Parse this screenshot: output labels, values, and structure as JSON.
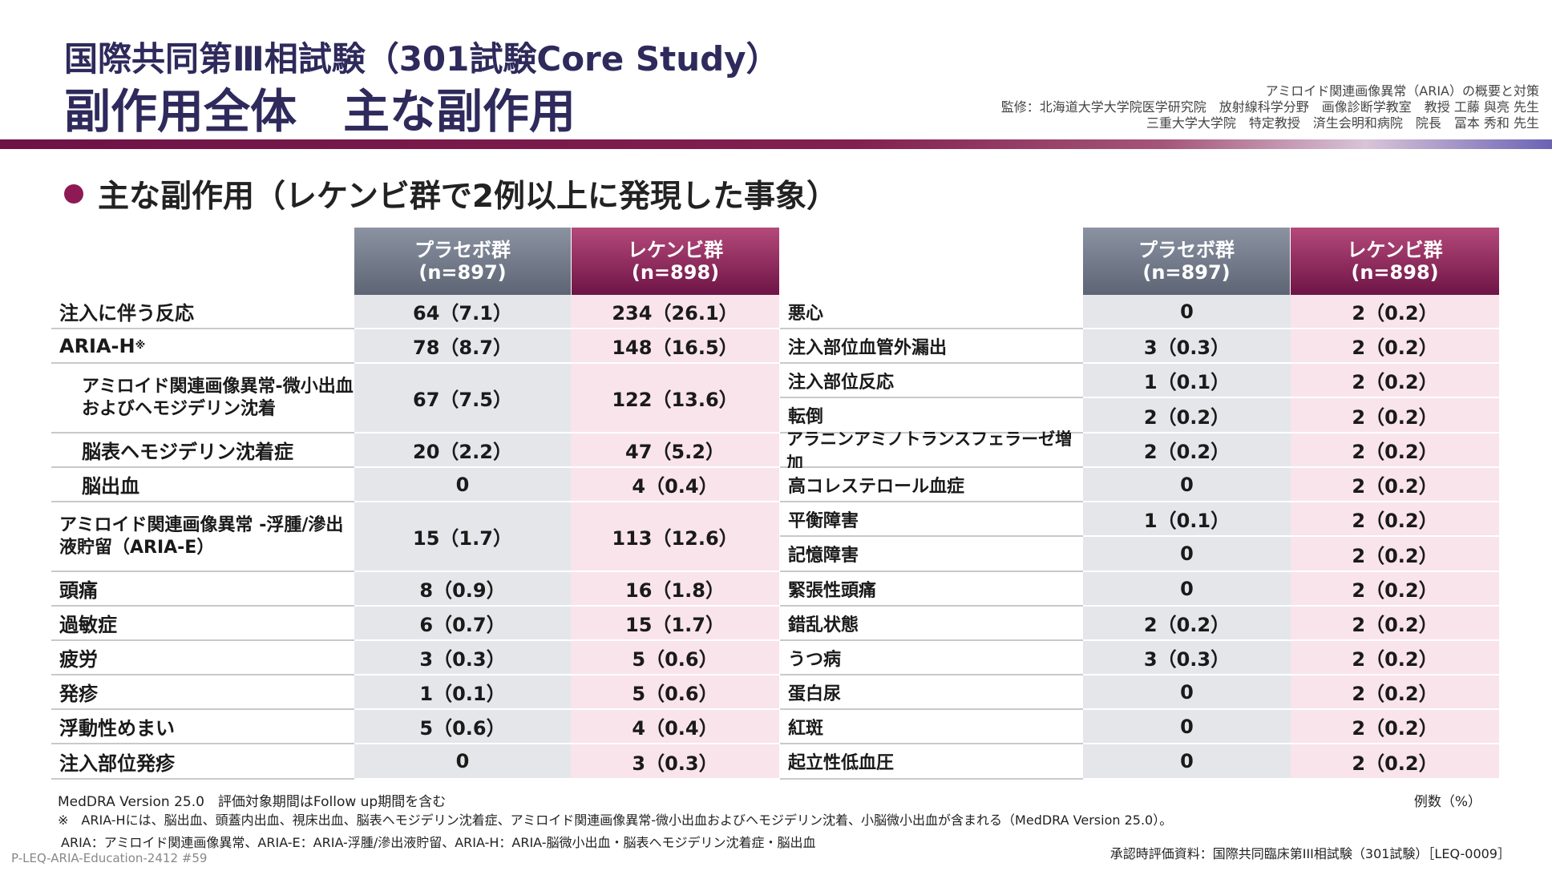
{
  "header": {
    "title_line1": "国際共同第Ⅲ相試験（301試験Core Study）",
    "title_line2": "副作用全体　主な副作用",
    "supervise_line1": "アミロイド関連画像異常（ARIA）の概要と対策",
    "supervise_line2": "監修：北海道大学大学院医学研究院　放射線科学分野　画像診断学教室　教授 工藤 與亮 先生",
    "supervise_line3": "三重大学大学院　特定教授　済生会明和病院　院長　冨本 秀和 先生"
  },
  "section": {
    "title": "主な副作用（レケンビ群で2例以上に発現した事象）"
  },
  "table_left": {
    "header_placebo": [
      "プラセボ群",
      "(n=897)"
    ],
    "header_leq": [
      "レケンビ群",
      "(n=898)"
    ],
    "rows": [
      {
        "label": "注入に伴う反応",
        "placebo": "64（7.1）",
        "leq": "234（26.1）"
      },
      {
        "label": "ARIA-H",
        "placebo": "78（8.7）",
        "leq": "148（16.5）"
      },
      {
        "label": "アミロイド関連画像異常-微小出血およびヘモジデリン沈着",
        "placebo": "67（7.5）",
        "leq": "122（13.6）"
      },
      {
        "label": "脳表ヘモジデリン沈着症",
        "placebo": "20（2.2）",
        "leq": "47（5.2）"
      },
      {
        "label": "脳出血",
        "placebo": "0",
        "leq": "4（0.4）"
      },
      {
        "label": "アミロイド関連画像異常 -浮腫/滲出液貯留（ARIA-E）",
        "placebo": "15（1.7）",
        "leq": "113（12.6）"
      },
      {
        "label": "頭痛",
        "placebo": "8（0.9）",
        "leq": "16（1.8）"
      },
      {
        "label": "過敏症",
        "placebo": "6（0.7）",
        "leq": "15（1.7）"
      },
      {
        "label": "疲労",
        "placebo": "3（0.3）",
        "leq": "5（0.6）"
      },
      {
        "label": "発疹",
        "placebo": "1（0.1）",
        "leq": "5（0.6）"
      },
      {
        "label": "浮動性めまい",
        "placebo": "5（0.6）",
        "leq": "4（0.4）"
      },
      {
        "label": "注入部位発疹",
        "placebo": "0",
        "leq": "3（0.3）"
      }
    ],
    "aria_h_mark": "※"
  },
  "table_right": {
    "header_placebo": [
      "プラセボ群",
      "(n=897)"
    ],
    "header_leq": [
      "レケンビ群",
      "(n=898)"
    ],
    "rows": [
      {
        "label": "悪心",
        "placebo": "0",
        "leq": "2（0.2）"
      },
      {
        "label": "注入部位血管外漏出",
        "placebo": "3（0.3）",
        "leq": "2（0.2）"
      },
      {
        "label": "注入部位反応",
        "placebo": "1（0.1）",
        "leq": "2（0.2）"
      },
      {
        "label": "転倒",
        "placebo": "2（0.2）",
        "leq": "2（0.2）"
      },
      {
        "label": "アラニンアミノトランスフェラーゼ増加",
        "placebo": "2（0.2）",
        "leq": "2（0.2）"
      },
      {
        "label": "高コレステロール血症",
        "placebo": "0",
        "leq": "2（0.2）"
      },
      {
        "label": "平衡障害",
        "placebo": "1（0.1）",
        "leq": "2（0.2）"
      },
      {
        "label": "記憶障害",
        "placebo": "0",
        "leq": "2（0.2）"
      },
      {
        "label": "緊張性頭痛",
        "placebo": "0",
        "leq": "2（0.2）"
      },
      {
        "label": "錯乱状態",
        "placebo": "2（0.2）",
        "leq": "2（0.2）"
      },
      {
        "label": "うつ病",
        "placebo": "3（0.3）",
        "leq": "2（0.2）"
      },
      {
        "label": "蛋白尿",
        "placebo": "0",
        "leq": "2（0.2）"
      },
      {
        "label": "紅斑",
        "placebo": "0",
        "leq": "2（0.2）"
      },
      {
        "label": "起立性低血圧",
        "placebo": "0",
        "leq": "2（0.2）"
      }
    ]
  },
  "footer": {
    "note1": "MedDRA Version 25.0　評価対象期間はFollow up期間を含む",
    "unit": "例数（%）",
    "note2": "※　ARIA-Hには、脳出血、頭蓋内出血、視床出血、脳表ヘモジデリン沈着症、アミロイド関連画像異常-微小出血およびヘモジデリン沈着、小脳微小出血が含まれる（MedDRA Version 25.0）。",
    "note3": "ARIA：アミロイド関連画像異常、ARIA-E：ARIA-浮腫/滲出液貯留、ARIA-H：ARIA-脳微小出血・脳表ヘモジデリン沈着症・脳出血",
    "doc_code": "P-LEQ-ARIA-Education-2412 #59",
    "approval": "承認時評価資料：国際共同臨床第III相試験（301試験）［LEQ-0009］"
  }
}
